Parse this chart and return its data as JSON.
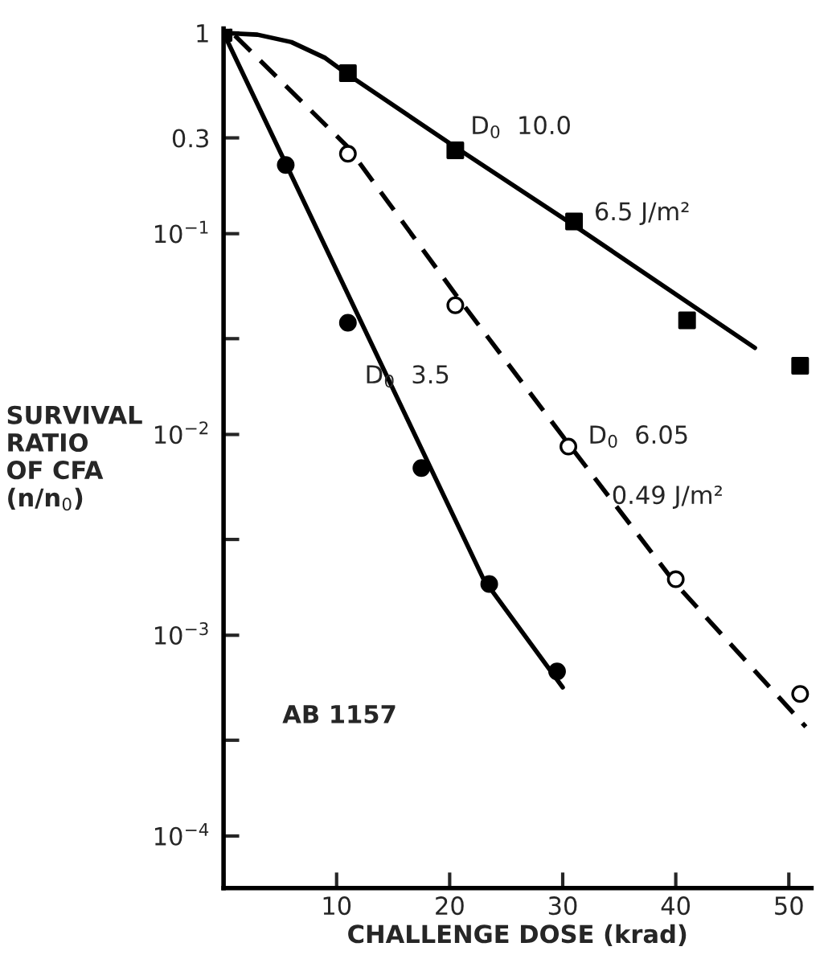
{
  "chart_data": {
    "type": "scatter",
    "xlabel": "CHALLENGE DOSE (krad)",
    "ylabel": "SURVIVAL\nRATIO\nOF CFA\n(n/n$_{0}$)",
    "log": "y",
    "grid": false,
    "legend": false,
    "xlim": [
      0,
      52
    ],
    "xticks": [
      {
        "value": 0,
        "label": null
      },
      10,
      20,
      30,
      40,
      50
    ],
    "ylim": [
      5.5e-05,
      1.05
    ],
    "yticks": [
      {
        "value": 1,
        "label": "1"
      },
      {
        "value": 0.3,
        "label": "0.3"
      },
      {
        "value": 0.1,
        "label": "10$^{−1}$"
      },
      {
        "value": 0.03,
        "label": null
      },
      {
        "value": 0.01,
        "label": "10$^{−2}$"
      },
      {
        "value": 0.003,
        "label": null
      },
      {
        "value": 0.001,
        "label": "10$^{−3}$"
      },
      {
        "value": 0.0003,
        "label": null
      },
      {
        "value": 0.0001,
        "label": "10$^{−4}$"
      }
    ],
    "series": [
      {
        "marker": "square",
        "color": "#000000",
        "x": [
          0,
          11,
          20.5,
          31,
          41,
          51
        ],
        "values": [
          1,
          0.63,
          0.26,
          0.115,
          0.037,
          0.022
        ]
      },
      {
        "marker": "circle",
        "color": "#000000",
        "x": [
          5.5,
          11,
          17.5,
          23.5,
          29.5
        ],
        "values": [
          0.22,
          0.036,
          0.0068,
          0.0018,
          0.00066
        ]
      },
      {
        "marker": "circle",
        "color": "#ffffff",
        "x": [
          11,
          20.5,
          30.5,
          40,
          51
        ],
        "values": [
          0.25,
          0.044,
          0.0087,
          0.0019,
          0.00051
        ]
      },
      {
        "type": "line",
        "line_style": "solid",
        "color": "#000000",
        "x": [
          0,
          3,
          6,
          9,
          11,
          20.5,
          31,
          47
        ],
        "values": [
          1,
          0.98,
          0.9,
          0.75,
          0.62,
          0.27,
          0.11,
          0.027
        ]
      },
      {
        "type": "line",
        "line_style": "solid",
        "color": "#000000",
        "x": [
          0,
          23,
          30
        ],
        "values": [
          1,
          0.0019,
          0.00055
        ]
      },
      {
        "type": "line",
        "line_style": "dashed",
        "color": "#000000",
        "x": [
          1,
          11,
          20.5,
          30.5,
          40,
          51.5
        ],
        "values": [
          0.97,
          0.27,
          0.05,
          0.009,
          0.0018,
          0.00035
        ]
      }
    ],
    "annotations": [
      "D$_{0}$  10.0",
      "6.5 J/m²",
      "D$_{0}$  3.5",
      "D$_{0}$  6.05",
      "0.49 J/m²",
      "AB 1157"
    ]
  }
}
